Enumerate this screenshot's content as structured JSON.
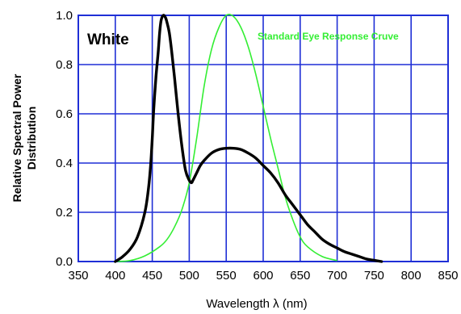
{
  "chart_data": {
    "type": "line",
    "title": "",
    "xlabel": "Wavelength  λ (nm)",
    "ylabel_lines": [
      "Relative Spectral Power",
      "Distribution"
    ],
    "xlim": [
      350,
      850
    ],
    "ylim": [
      0,
      1
    ],
    "x_ticks": [
      350,
      400,
      450,
      500,
      550,
      600,
      650,
      700,
      750,
      800,
      850
    ],
    "y_ticks": [
      0.0,
      0.2,
      0.4,
      0.6,
      0.8,
      1.0
    ],
    "y_tick_labels": [
      "0.0",
      "0.2",
      "0.4",
      "0.6",
      "0.8",
      "1.0"
    ],
    "grid": true,
    "colors": {
      "grid": "#1f2fd6",
      "white_series": "#000000",
      "eye_series": "#33ee33"
    },
    "series": [
      {
        "name": "White",
        "x": [
          400,
          410,
          420,
          430,
          440,
          445,
          448,
          450,
          452,
          455,
          458,
          460,
          462,
          465,
          468,
          470,
          473,
          476,
          480,
          485,
          490,
          495,
          500,
          503,
          505,
          510,
          515,
          520,
          530,
          540,
          550,
          560,
          570,
          580,
          590,
          600,
          610,
          620,
          630,
          640,
          650,
          660,
          670,
          680,
          690,
          700,
          710,
          720,
          730,
          740,
          750,
          760
        ],
        "y": [
          0.0,
          0.02,
          0.05,
          0.1,
          0.2,
          0.3,
          0.4,
          0.5,
          0.62,
          0.75,
          0.85,
          0.93,
          0.98,
          1.0,
          0.99,
          0.97,
          0.93,
          0.86,
          0.75,
          0.6,
          0.47,
          0.37,
          0.33,
          0.32,
          0.33,
          0.36,
          0.39,
          0.41,
          0.44,
          0.455,
          0.46,
          0.46,
          0.455,
          0.44,
          0.42,
          0.39,
          0.36,
          0.32,
          0.27,
          0.23,
          0.19,
          0.15,
          0.12,
          0.09,
          0.07,
          0.055,
          0.04,
          0.03,
          0.02,
          0.01,
          0.005,
          0.0
        ]
      },
      {
        "name": "Standard Eye Response Cruve",
        "x": [
          400,
          420,
          440,
          460,
          470,
          480,
          490,
          500,
          510,
          520,
          530,
          540,
          550,
          560,
          570,
          580,
          590,
          600,
          610,
          620,
          630,
          640,
          650,
          660,
          680,
          700
        ],
        "y": [
          0.0,
          0.004,
          0.023,
          0.06,
          0.09,
          0.14,
          0.21,
          0.32,
          0.5,
          0.71,
          0.86,
          0.95,
          1.0,
          0.995,
          0.95,
          0.87,
          0.76,
          0.63,
          0.5,
          0.38,
          0.26,
          0.17,
          0.1,
          0.06,
          0.02,
          0.004
        ]
      }
    ],
    "legend": {
      "white_label": "White",
      "eye_label": "Standard Eye Response Cruve"
    }
  }
}
